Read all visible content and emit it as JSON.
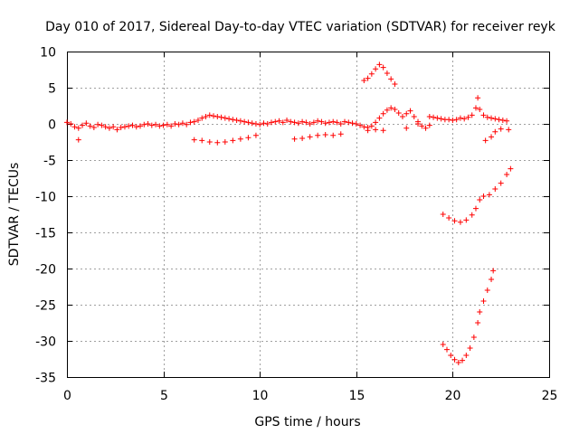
{
  "chart_data": {
    "type": "scatter",
    "title": "Day 010 of 2017, Sidereal Day-to-day VTEC variation (SDTVAR) for receiver reyk",
    "xlabel": "GPS time / hours",
    "ylabel": "SDTVAR / TECUs",
    "xlim": [
      0,
      25
    ],
    "ylim": [
      -35,
      10
    ],
    "xticks": [
      0,
      5,
      10,
      15,
      20,
      25
    ],
    "yticks": [
      10,
      5,
      0,
      -5,
      -10,
      -15,
      -20,
      -25,
      -30,
      -35
    ],
    "grid": true,
    "marker": "plus",
    "color": "#ff0000",
    "series": [
      {
        "values": [
          [
            0.0,
            0.2
          ],
          [
            0.2,
            0.0
          ],
          [
            0.4,
            -0.4
          ],
          [
            0.6,
            -0.6
          ],
          [
            0.8,
            -0.2
          ],
          [
            1.0,
            0.1
          ],
          [
            1.2,
            -0.3
          ],
          [
            1.4,
            -0.5
          ],
          [
            1.6,
            -0.1
          ],
          [
            1.8,
            -0.2
          ],
          [
            2.0,
            -0.4
          ],
          [
            2.2,
            -0.6
          ],
          [
            2.4,
            -0.4
          ],
          [
            2.6,
            -0.8
          ],
          [
            2.8,
            -0.5
          ],
          [
            3.0,
            -0.4
          ],
          [
            3.2,
            -0.3
          ],
          [
            3.4,
            -0.2
          ],
          [
            3.6,
            -0.4
          ],
          [
            3.8,
            -0.3
          ],
          [
            4.0,
            -0.1
          ],
          [
            4.2,
            0.0
          ],
          [
            4.4,
            -0.2
          ],
          [
            4.6,
            -0.1
          ],
          [
            4.8,
            -0.3
          ],
          [
            5.0,
            -0.2
          ],
          [
            5.2,
            -0.1
          ],
          [
            5.4,
            -0.3
          ],
          [
            5.6,
            0.0
          ],
          [
            5.8,
            -0.1
          ],
          [
            6.0,
            0.1
          ],
          [
            6.2,
            -0.1
          ],
          [
            6.4,
            0.2
          ],
          [
            6.6,
            0.3
          ],
          [
            6.8,
            0.5
          ],
          [
            7.0,
            0.8
          ],
          [
            7.2,
            1.0
          ],
          [
            7.4,
            1.2
          ],
          [
            7.6,
            1.1
          ],
          [
            7.8,
            1.0
          ],
          [
            8.0,
            0.9
          ],
          [
            8.2,
            0.8
          ],
          [
            8.4,
            0.7
          ],
          [
            8.6,
            0.6
          ],
          [
            8.8,
            0.5
          ],
          [
            9.0,
            0.4
          ],
          [
            9.2,
            0.3
          ],
          [
            9.4,
            0.2
          ],
          [
            9.6,
            0.1
          ],
          [
            9.8,
            0.0
          ],
          [
            10.0,
            -0.1
          ],
          [
            10.2,
            0.1
          ],
          [
            10.4,
            0.0
          ],
          [
            10.6,
            0.2
          ],
          [
            10.8,
            0.3
          ],
          [
            11.0,
            0.4
          ],
          [
            11.2,
            0.2
          ],
          [
            11.4,
            0.5
          ],
          [
            11.6,
            0.3
          ],
          [
            11.8,
            0.2
          ],
          [
            12.0,
            0.1
          ],
          [
            12.2,
            0.3
          ],
          [
            12.4,
            0.2
          ],
          [
            12.6,
            0.0
          ],
          [
            12.8,
            0.2
          ],
          [
            13.0,
            0.4
          ],
          [
            13.2,
            0.3
          ],
          [
            13.4,
            0.1
          ],
          [
            13.6,
            0.2
          ],
          [
            13.8,
            0.3
          ],
          [
            14.0,
            0.2
          ],
          [
            14.2,
            0.0
          ],
          [
            14.4,
            0.3
          ],
          [
            14.6,
            0.2
          ],
          [
            14.8,
            0.1
          ],
          [
            15.0,
            0.0
          ],
          [
            15.2,
            -0.2
          ],
          [
            15.4,
            -0.4
          ],
          [
            15.6,
            -0.5
          ],
          [
            15.8,
            -0.3
          ],
          [
            16.0,
            0.2
          ],
          [
            16.2,
            0.8
          ],
          [
            16.4,
            1.4
          ],
          [
            16.6,
            1.9
          ],
          [
            16.8,
            2.2
          ],
          [
            17.0,
            2.0
          ],
          [
            17.2,
            1.5
          ],
          [
            17.4,
            1.0
          ],
          [
            17.6,
            1.4
          ],
          [
            17.8,
            1.8
          ],
          [
            18.0,
            1.0
          ],
          [
            18.2,
            0.3
          ],
          [
            18.4,
            -0.3
          ],
          [
            18.6,
            -0.6
          ],
          [
            18.8,
            1.0
          ],
          [
            19.0,
            0.9
          ],
          [
            19.2,
            0.8
          ],
          [
            19.4,
            0.7
          ],
          [
            19.6,
            0.6
          ],
          [
            19.8,
            0.6
          ],
          [
            20.0,
            0.5
          ],
          [
            20.2,
            0.6
          ],
          [
            20.4,
            0.8
          ],
          [
            20.6,
            0.7
          ],
          [
            20.8,
            0.9
          ],
          [
            21.0,
            1.2
          ],
          [
            21.2,
            2.2
          ],
          [
            21.3,
            3.6
          ],
          [
            21.4,
            2.0
          ],
          [
            21.6,
            1.2
          ],
          [
            21.8,
            0.9
          ],
          [
            22.0,
            0.8
          ],
          [
            22.2,
            0.7
          ],
          [
            22.4,
            0.6
          ],
          [
            22.6,
            0.5
          ],
          [
            22.8,
            0.4
          ]
        ]
      },
      {
        "values": [
          [
            0.6,
            -2.2
          ],
          [
            6.6,
            -2.2
          ],
          [
            7.0,
            -2.3
          ],
          [
            7.4,
            -2.5
          ],
          [
            7.8,
            -2.6
          ],
          [
            8.2,
            -2.5
          ],
          [
            8.6,
            -2.3
          ],
          [
            9.0,
            -2.1
          ],
          [
            9.4,
            -1.9
          ],
          [
            9.8,
            -1.6
          ],
          [
            11.8,
            -2.1
          ],
          [
            12.2,
            -2.0
          ],
          [
            12.6,
            -1.8
          ],
          [
            13.0,
            -1.6
          ],
          [
            13.4,
            -1.5
          ],
          [
            13.8,
            -1.6
          ],
          [
            14.2,
            -1.4
          ],
          [
            15.6,
            -0.9
          ],
          [
            16.0,
            -0.8
          ],
          [
            16.4,
            -0.9
          ],
          [
            17.6,
            -0.6
          ],
          [
            18.2,
            0.0
          ],
          [
            18.8,
            -0.2
          ],
          [
            21.7,
            -2.3
          ],
          [
            22.0,
            -1.8
          ],
          [
            22.2,
            -1.1
          ],
          [
            22.5,
            -0.7
          ],
          [
            22.9,
            -0.8
          ]
        ]
      },
      {
        "values": [
          [
            15.4,
            6.0
          ],
          [
            15.6,
            6.3
          ],
          [
            15.8,
            6.9
          ],
          [
            16.0,
            7.6
          ],
          [
            16.2,
            8.2
          ],
          [
            16.4,
            7.8
          ],
          [
            16.6,
            7.0
          ],
          [
            16.8,
            6.2
          ],
          [
            17.0,
            5.5
          ]
        ]
      },
      {
        "values": [
          [
            19.5,
            -12.5
          ],
          [
            19.8,
            -13.0
          ],
          [
            20.1,
            -13.4
          ],
          [
            20.4,
            -13.6
          ],
          [
            20.7,
            -13.3
          ],
          [
            21.0,
            -12.6
          ],
          [
            21.2,
            -11.7
          ],
          [
            21.4,
            -10.5
          ],
          [
            21.6,
            -10.0
          ],
          [
            21.9,
            -9.8
          ],
          [
            22.2,
            -9.0
          ],
          [
            22.5,
            -8.2
          ],
          [
            22.8,
            -7.0
          ],
          [
            23.0,
            -6.2
          ]
        ]
      },
      {
        "values": [
          [
            19.5,
            -30.5
          ],
          [
            19.7,
            -31.2
          ],
          [
            19.9,
            -32.0
          ],
          [
            20.1,
            -32.6
          ],
          [
            20.3,
            -33.0
          ],
          [
            20.5,
            -32.7
          ],
          [
            20.7,
            -32.0
          ],
          [
            20.9,
            -31.0
          ],
          [
            21.1,
            -29.5
          ],
          [
            21.3,
            -27.5
          ],
          [
            21.4,
            -26.0
          ],
          [
            21.6,
            -24.5
          ],
          [
            21.8,
            -23.0
          ],
          [
            22.0,
            -21.5
          ],
          [
            22.1,
            -20.3
          ]
        ]
      }
    ]
  }
}
